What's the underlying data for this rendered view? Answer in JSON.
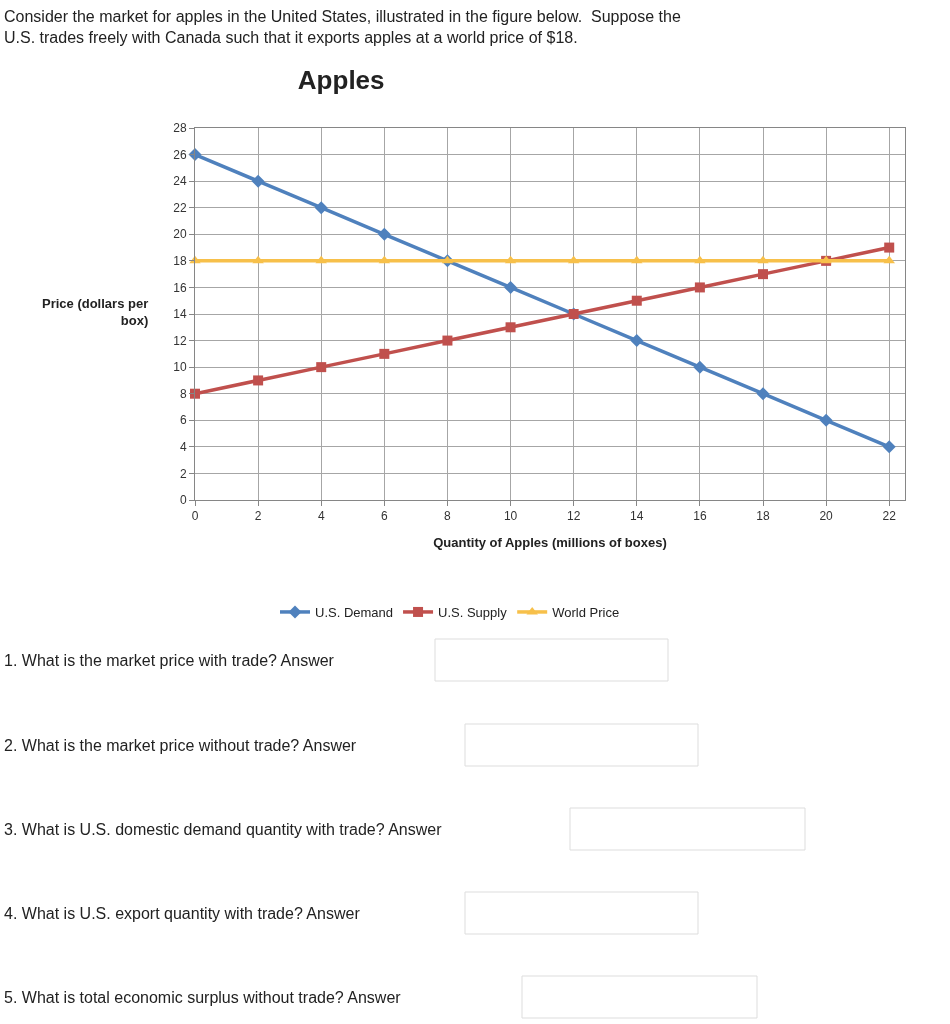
{
  "chart_data": {
    "type": "line",
    "title": "Apples",
    "xlabel": "Quantity of Apples (millions of boxes)",
    "ylabel": "Price (dollars per box)",
    "x": [
      0,
      2,
      4,
      6,
      8,
      10,
      12,
      14,
      16,
      18,
      20,
      22
    ],
    "series": [
      {
        "name": "U.S. Demand",
        "color": "#4f81bd",
        "marker": "diamond",
        "values": [
          26,
          24,
          22,
          20,
          18,
          16,
          14,
          12,
          10,
          8,
          6,
          4
        ]
      },
      {
        "name": "U.S. Supply",
        "color": "#c0504d",
        "marker": "square",
        "values": [
          8,
          9,
          10,
          11,
          12,
          13,
          14,
          15,
          16,
          17,
          18,
          19
        ]
      },
      {
        "name": "World Price",
        "color": "#f7c04a",
        "marker": "triangle",
        "values": [
          18,
          18,
          18,
          18,
          18,
          18,
          18,
          18,
          18,
          18,
          18,
          18
        ]
      }
    ],
    "xlim": [
      0,
      22.5
    ],
    "xticks": [
      0,
      2,
      4,
      6,
      8,
      10,
      12,
      14,
      16,
      18,
      20,
      22
    ],
    "ylim": [
      0,
      28
    ],
    "yticks": [
      0,
      2,
      4,
      6,
      8,
      10,
      12,
      14,
      16,
      18,
      20,
      22,
      24,
      26,
      28
    ],
    "grid": true,
    "legend": "bottom",
    "annotations": [
      "Consider the market for apples in the United States, illustrated in the figure below.  Suppose the U.S. trades freely with Canada such that it exports apples at a world price of $18.",
      "1. What is the market price with trade? Answer",
      "2. What is the market price without trade? Answer",
      "3. What is U.S. domestic demand quantity with trade? Answer",
      "4. What is U.S. export quantity with trade? Answer",
      "5. What is total economic surplus without trade? Answer"
    ]
  }
}
